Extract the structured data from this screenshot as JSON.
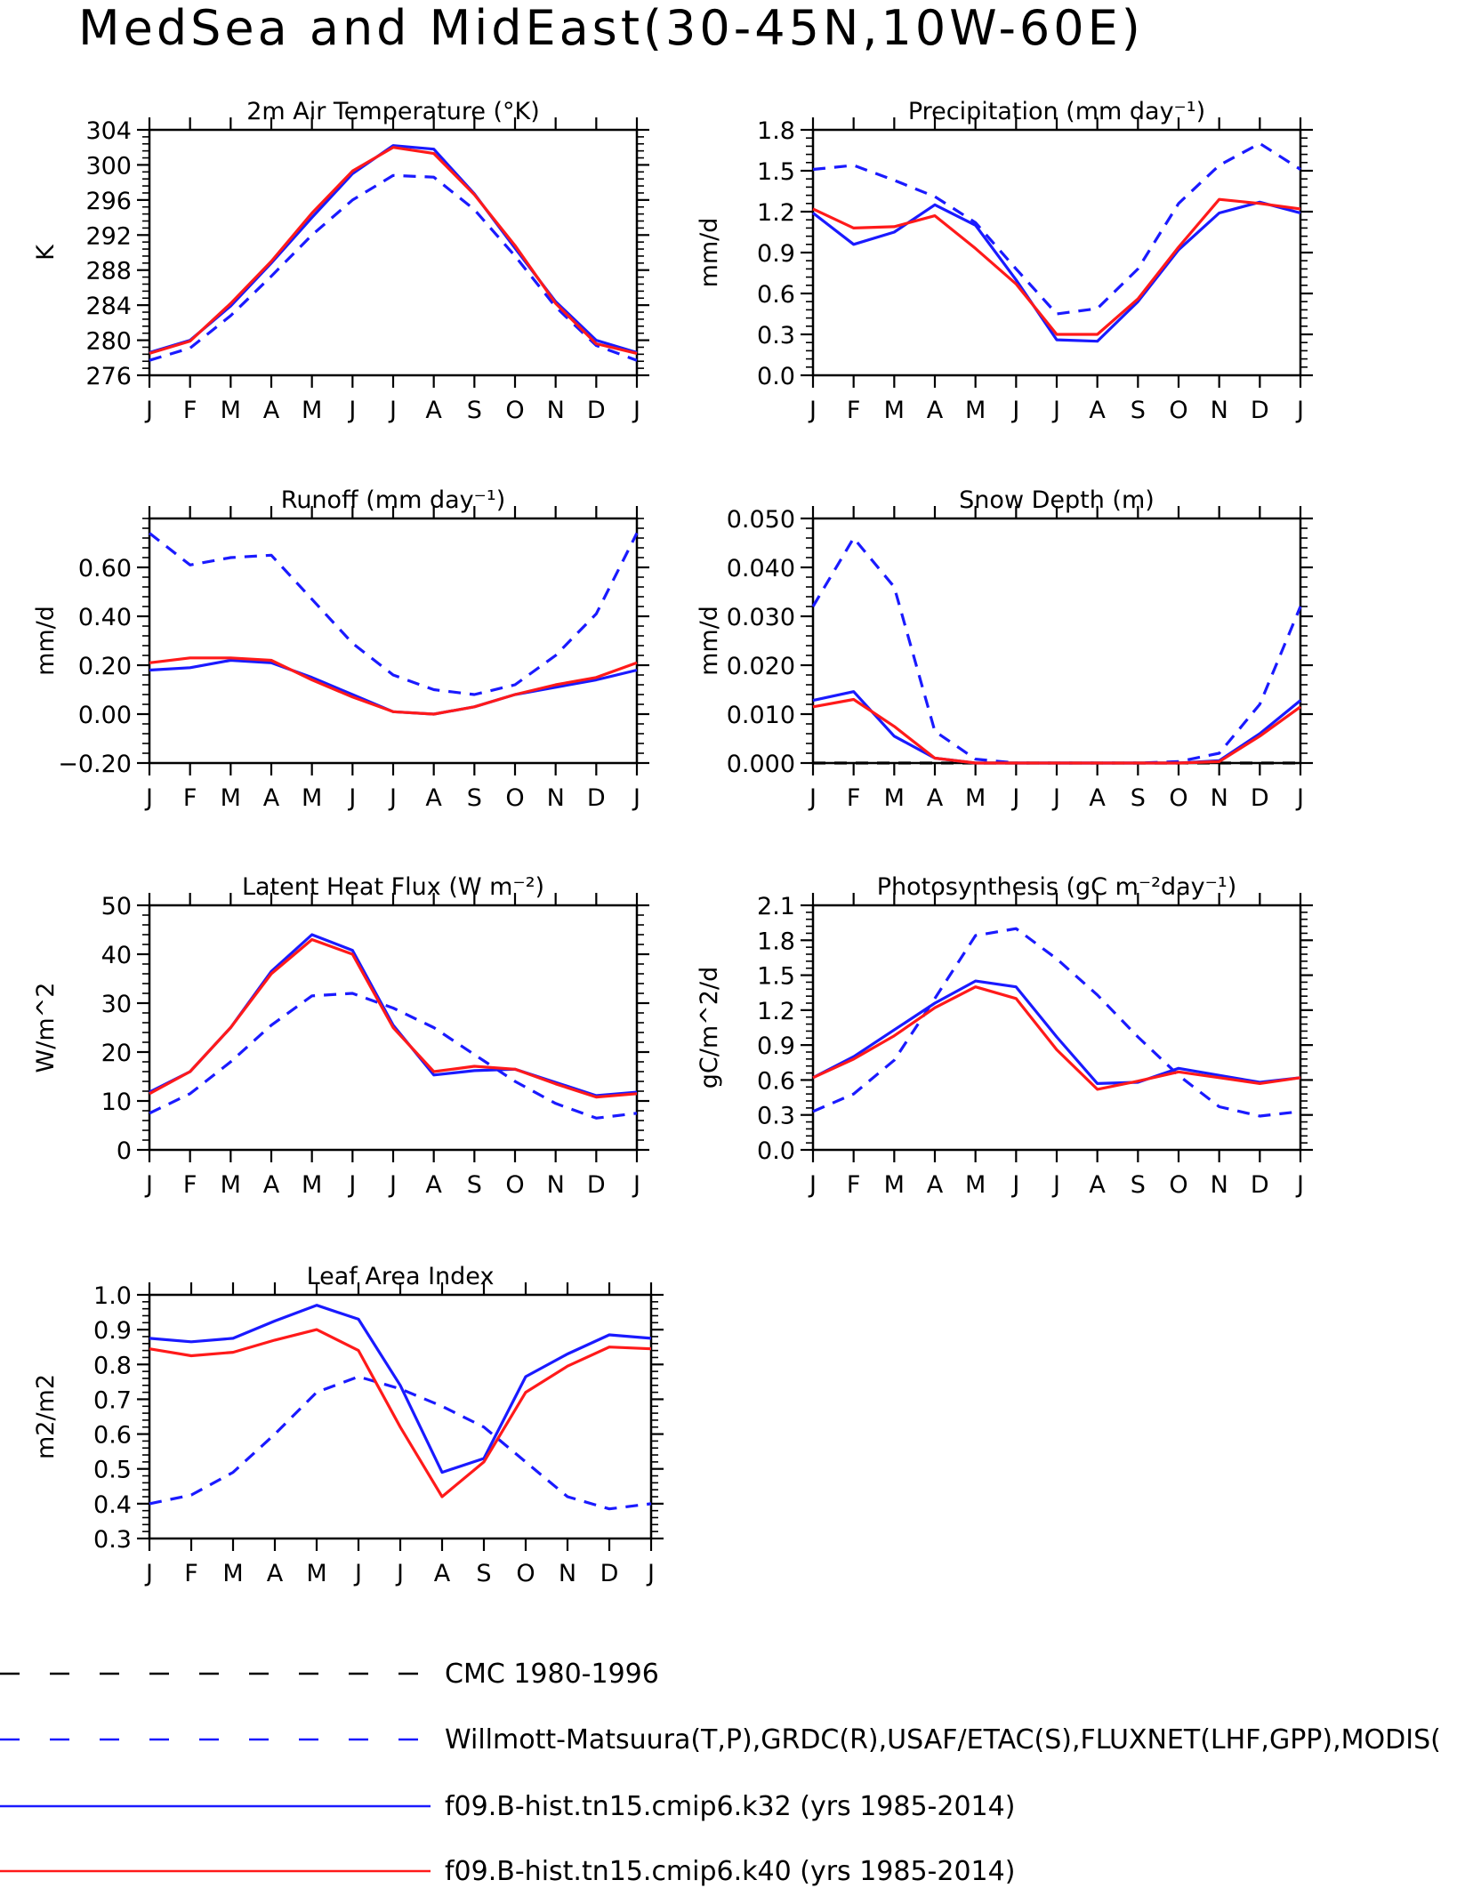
{
  "page_title": "MedSea and MidEast(30-45N,10W-60E)",
  "colors": {
    "obs": "#1a1aff",
    "k32": "#1a1aff",
    "k40": "#ff1a1a",
    "cmc": "#000000"
  },
  "legend": [
    {
      "id": "cmc",
      "label": "CMC 1980-1996",
      "color": "#000000",
      "dash": true
    },
    {
      "id": "obs",
      "label": "Willmott-Matsuura(T,P),GRDC(R),USAF/ETAC(S),FLUXNET(LHF,GPP),MODIS(",
      "color": "#1a1aff",
      "dash": true
    },
    {
      "id": "k32",
      "label": "f09.B-hist.tn15.cmip6.k32 (yrs 1985-2014)",
      "color": "#1a1aff",
      "dash": false
    },
    {
      "id": "k40",
      "label": "f09.B-hist.tn15.cmip6.k40 (yrs 1985-2014)",
      "color": "#ff1a1a",
      "dash": false
    }
  ],
  "chart_data": [
    {
      "type": "line",
      "id": "tsa",
      "title": "2m Air Temperature (°K)",
      "ylabel": "K",
      "categories": [
        "J",
        "F",
        "M",
        "A",
        "M",
        "J",
        "J",
        "A",
        "S",
        "O",
        "N",
        "D",
        "J"
      ],
      "ylim": [
        276,
        304
      ],
      "ytick_step": 4,
      "decimals": 0,
      "series": [
        {
          "name": "Willmott-Matsuura(T,P),GRDC(R),USAF/ETAC(S),FLUXNET(LHF,GPP),MODIS(",
          "style": "obs",
          "values": [
            277.7,
            279.1,
            282.8,
            287.3,
            292.0,
            296.0,
            298.8,
            298.6,
            294.9,
            289.6,
            283.8,
            279.4,
            277.7
          ]
        },
        {
          "name": "f09.B-hist.tn15.cmip6.k32 (yrs 1985-2014)",
          "style": "k32",
          "values": [
            278.6,
            280.0,
            283.9,
            288.8,
            294.0,
            299.0,
            302.2,
            301.8,
            296.7,
            290.5,
            284.4,
            280.0,
            278.6
          ]
        },
        {
          "name": "f09.B-hist.tn15.cmip6.k40 (yrs 1985-2014)",
          "style": "k40",
          "values": [
            278.5,
            279.9,
            284.2,
            289.0,
            294.5,
            299.3,
            302.0,
            301.3,
            296.6,
            290.8,
            284.2,
            279.6,
            278.5
          ]
        }
      ]
    },
    {
      "type": "line",
      "id": "prec",
      "title": "Precipitation (mm day⁻¹)",
      "ylabel": "mm/d",
      "categories": [
        "J",
        "F",
        "M",
        "A",
        "M",
        "J",
        "J",
        "A",
        "S",
        "O",
        "N",
        "D",
        "J"
      ],
      "ylim": [
        0.0,
        1.8
      ],
      "ytick_step": 0.3,
      "decimals": 1,
      "series": [
        {
          "name": "Willmott-Matsuura(T,P),GRDC(R),USAF/ETAC(S),FLUXNET(LHF,GPP),MODIS(",
          "style": "obs",
          "values": [
            1.51,
            1.54,
            1.43,
            1.31,
            1.12,
            0.78,
            0.45,
            0.49,
            0.78,
            1.26,
            1.54,
            1.7,
            1.51
          ]
        },
        {
          "name": "f09.B-hist.tn15.cmip6.k32 (yrs 1985-2014)",
          "style": "k32",
          "values": [
            1.19,
            0.96,
            1.05,
            1.25,
            1.1,
            0.7,
            0.26,
            0.25,
            0.54,
            0.92,
            1.19,
            1.27,
            1.19
          ]
        },
        {
          "name": "f09.B-hist.tn15.cmip6.k40 (yrs 1985-2014)",
          "style": "k40",
          "values": [
            1.22,
            1.08,
            1.09,
            1.17,
            0.93,
            0.67,
            0.3,
            0.3,
            0.56,
            0.94,
            1.29,
            1.26,
            1.22
          ]
        }
      ]
    },
    {
      "type": "line",
      "id": "runoff",
      "title": "Runoff (mm day⁻¹)",
      "ylabel": "mm/d",
      "categories": [
        "J",
        "F",
        "M",
        "A",
        "M",
        "J",
        "J",
        "A",
        "S",
        "O",
        "N",
        "D",
        "J"
      ],
      "ylim": [
        -0.2,
        0.8
      ],
      "ytick_step": 0.2,
      "ytick_max": 0.6,
      "decimals": 2,
      "series": [
        {
          "name": "Willmott-Matsuura(T,P),GRDC(R),USAF/ETAC(S),FLUXNET(LHF,GPP),MODIS(",
          "style": "obs",
          "values": [
            0.74,
            0.61,
            0.64,
            0.65,
            0.47,
            0.29,
            0.16,
            0.1,
            0.08,
            0.12,
            0.24,
            0.41,
            0.74
          ]
        },
        {
          "name": "f09.B-hist.tn15.cmip6.k32 (yrs 1985-2014)",
          "style": "k32",
          "values": [
            0.18,
            0.19,
            0.22,
            0.21,
            0.15,
            0.08,
            0.01,
            0.0,
            0.03,
            0.08,
            0.11,
            0.14,
            0.18
          ]
        },
        {
          "name": "f09.B-hist.tn15.cmip6.k40 (yrs 1985-2014)",
          "style": "k40",
          "values": [
            0.21,
            0.23,
            0.23,
            0.22,
            0.14,
            0.07,
            0.01,
            0.0,
            0.03,
            0.08,
            0.12,
            0.15,
            0.21
          ]
        }
      ]
    },
    {
      "type": "line",
      "id": "snow",
      "title": "Snow Depth (m)",
      "ylabel": "mm/d",
      "categories": [
        "J",
        "F",
        "M",
        "A",
        "M",
        "J",
        "J",
        "A",
        "S",
        "O",
        "N",
        "D",
        "J"
      ],
      "ylim": [
        0.0,
        0.05
      ],
      "ytick_step": 0.01,
      "decimals": 3,
      "series": [
        {
          "name": "CMC 1980-1996",
          "style": "cmc",
          "values": [
            0.0,
            0.0,
            0.0,
            0.0,
            0.0,
            0.0,
            0.0,
            0.0,
            0.0,
            0.0,
            0.0,
            0.0,
            0.0
          ]
        },
        {
          "name": "Willmott-Matsuura(T,P),GRDC(R),USAF/ETAC(S),FLUXNET(LHF,GPP),MODIS(",
          "style": "obs",
          "values": [
            0.032,
            0.046,
            0.036,
            0.0065,
            0.0008,
            0.0,
            0.0,
            0.0,
            0.0,
            0.0003,
            0.002,
            0.012,
            0.032
          ]
        },
        {
          "name": "f09.B-hist.tn15.cmip6.k32 (yrs 1985-2014)",
          "style": "k32",
          "values": [
            0.0128,
            0.0146,
            0.0055,
            0.001,
            0.0,
            0.0,
            0.0,
            0.0,
            0.0,
            0.0,
            0.0005,
            0.006,
            0.0128
          ]
        },
        {
          "name": "f09.B-hist.tn15.cmip6.k40 (yrs 1985-2014)",
          "style": "k40",
          "values": [
            0.0115,
            0.013,
            0.0075,
            0.001,
            0.0,
            0.0,
            0.0,
            0.0,
            0.0,
            0.0,
            0.0003,
            0.0055,
            0.0115
          ]
        }
      ]
    },
    {
      "type": "line",
      "id": "lhf",
      "title": "Latent Heat Flux (W m⁻²)",
      "ylabel": "W/m^2",
      "categories": [
        "J",
        "F",
        "M",
        "A",
        "M",
        "J",
        "J",
        "A",
        "S",
        "O",
        "N",
        "D",
        "J"
      ],
      "ylim": [
        0,
        50
      ],
      "ytick_step": 10,
      "decimals": 0,
      "series": [
        {
          "name": "Willmott-Matsuura(T,P),GRDC(R),USAF/ETAC(S),FLUXNET(LHF,GPP),MODIS(",
          "style": "obs",
          "values": [
            7.5,
            11.5,
            18.0,
            25.5,
            31.5,
            32.0,
            29.0,
            25.0,
            19.5,
            14.0,
            9.5,
            6.5,
            7.5
          ]
        },
        {
          "name": "f09.B-hist.tn15.cmip6.k32 (yrs 1985-2014)",
          "style": "k32",
          "values": [
            11.8,
            16.0,
            25.0,
            36.5,
            44.0,
            40.8,
            25.5,
            15.3,
            16.2,
            16.5,
            13.8,
            11.1,
            11.8
          ]
        },
        {
          "name": "f09.B-hist.tn15.cmip6.k40 (yrs 1985-2014)",
          "style": "k40",
          "values": [
            11.5,
            16.0,
            25.0,
            36.0,
            43.0,
            40.0,
            25.0,
            16.0,
            17.1,
            16.5,
            13.5,
            10.8,
            11.5
          ]
        }
      ]
    },
    {
      "type": "line",
      "id": "gpp",
      "title": "Photosynthesis (gC m⁻²day⁻¹)",
      "ylabel": "gC/m^2/d",
      "categories": [
        "J",
        "F",
        "M",
        "A",
        "M",
        "J",
        "J",
        "A",
        "S",
        "O",
        "N",
        "D",
        "J"
      ],
      "ylim": [
        0.0,
        2.1
      ],
      "ytick_step": 0.3,
      "decimals": 1,
      "series": [
        {
          "name": "Willmott-Matsuura(T,P),GRDC(R),USAF/ETAC(S),FLUXNET(LHF,GPP),MODIS(",
          "style": "obs",
          "values": [
            0.33,
            0.48,
            0.77,
            1.3,
            1.84,
            1.9,
            1.64,
            1.33,
            0.97,
            0.64,
            0.37,
            0.29,
            0.33
          ]
        },
        {
          "name": "f09.B-hist.tn15.cmip6.k32 (yrs 1985-2014)",
          "style": "k32",
          "values": [
            0.62,
            0.8,
            1.03,
            1.26,
            1.45,
            1.4,
            0.97,
            0.57,
            0.58,
            0.7,
            0.64,
            0.58,
            0.62
          ]
        },
        {
          "name": "f09.B-hist.tn15.cmip6.k40 (yrs 1985-2014)",
          "style": "k40",
          "values": [
            0.62,
            0.78,
            0.98,
            1.22,
            1.4,
            1.3,
            0.86,
            0.52,
            0.59,
            0.67,
            0.62,
            0.57,
            0.62
          ]
        }
      ]
    },
    {
      "type": "line",
      "id": "lai",
      "title": "Leaf Area Index",
      "ylabel": "m2/m2",
      "categories": [
        "J",
        "F",
        "M",
        "A",
        "M",
        "J",
        "J",
        "A",
        "S",
        "O",
        "N",
        "D",
        "J"
      ],
      "ylim": [
        0.3,
        1.0
      ],
      "ytick_step": 0.1,
      "decimals": 1,
      "series": [
        {
          "name": "Willmott-Matsuura(T,P),GRDC(R),USAF/ETAC(S),FLUXNET(LHF,GPP),MODIS(",
          "style": "obs",
          "values": [
            0.4,
            0.425,
            0.49,
            0.6,
            0.72,
            0.765,
            0.73,
            0.68,
            0.62,
            0.52,
            0.42,
            0.385,
            0.4
          ]
        },
        {
          "name": "f09.B-hist.tn15.cmip6.k32 (yrs 1985-2014)",
          "style": "k32",
          "values": [
            0.875,
            0.865,
            0.875,
            0.925,
            0.97,
            0.93,
            0.74,
            0.49,
            0.53,
            0.765,
            0.83,
            0.885,
            0.875
          ]
        },
        {
          "name": "f09.B-hist.tn15.cmip6.k40 (yrs 1985-2014)",
          "style": "k40",
          "values": [
            0.845,
            0.825,
            0.835,
            0.87,
            0.9,
            0.84,
            0.62,
            0.42,
            0.52,
            0.72,
            0.795,
            0.85,
            0.845
          ]
        }
      ]
    }
  ]
}
